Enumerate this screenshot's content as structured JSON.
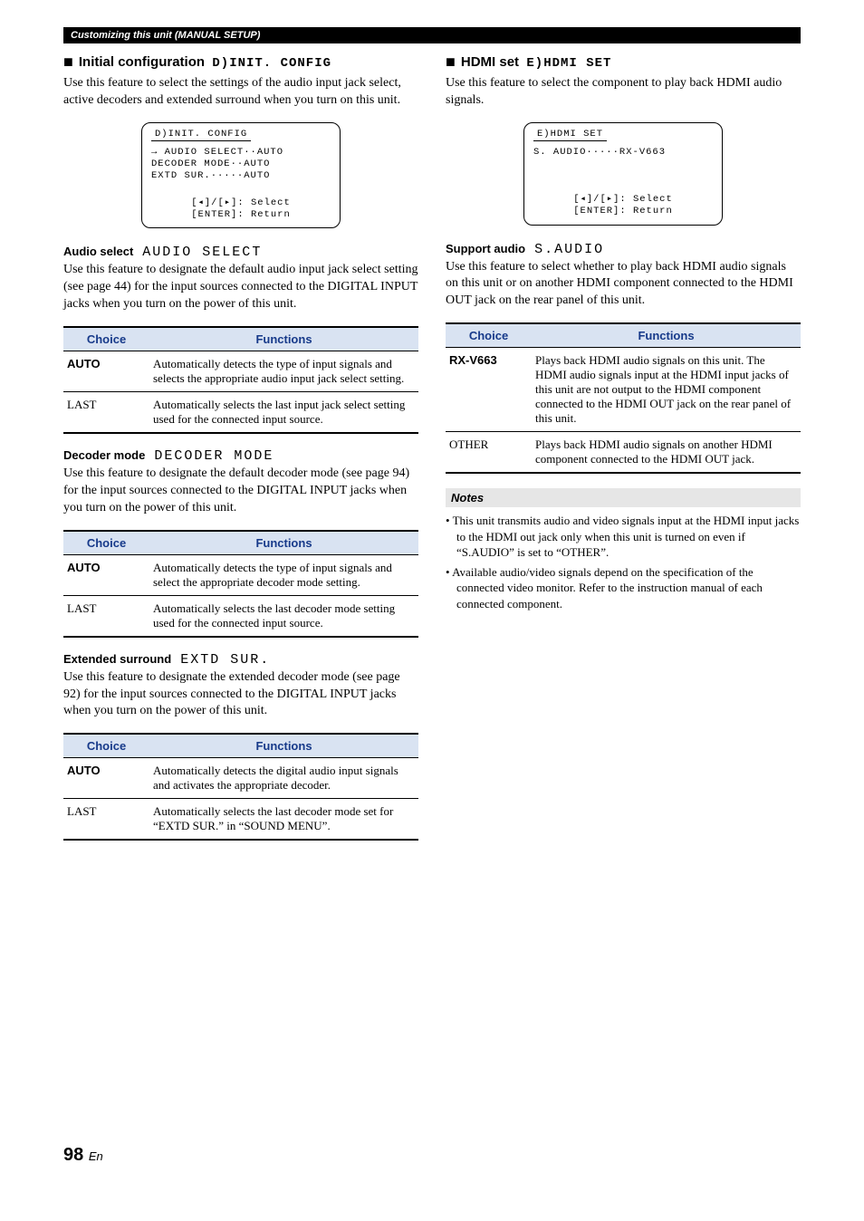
{
  "band": "Customizing this unit (MANUAL SETUP)",
  "left": {
    "init": {
      "heading": "Initial configuration",
      "lcd": "D)INIT. CONFIG",
      "body": "Use this feature to select the settings of the audio input jack select, active decoders and extended surround when you turn on this unit.",
      "screen": {
        "title": "D)INIT. CONFIG",
        "l1": "→ AUDIO SELECT··AUTO",
        "l2": "  DECODER MODE··AUTO",
        "l3": "  EXTD SUR.·····AUTO",
        "b1": "[◂]/[▸]: Select",
        "b2": "[ENTER]: Return"
      }
    },
    "audio": {
      "heading": "Audio select",
      "lcd": "AUDIO SELECT",
      "body": "Use this feature to designate the default audio input jack select setting (see page 44) for the input sources connected to the DIGITAL INPUT jacks when you turn on the power of this unit.",
      "th1": "Choice",
      "th2": "Functions",
      "r1c": "AUTO",
      "r1f": "Automatically detects the type of input signals and selects the appropriate audio input jack select setting.",
      "r2c": "LAST",
      "r2f": "Automatically selects the last input jack select setting used for the connected input source."
    },
    "decoder": {
      "heading": "Decoder mode",
      "lcd": "DECODER MODE",
      "body": "Use this feature to designate the default decoder mode (see page 94) for the input sources connected to the DIGITAL INPUT jacks when you turn on the power of this unit.",
      "th1": "Choice",
      "th2": "Functions",
      "r1c": "AUTO",
      "r1f": "Automatically detects the type of input signals and select the appropriate decoder mode setting.",
      "r2c": "LAST",
      "r2f": "Automatically selects the last decoder mode setting used for the connected input source."
    },
    "extd": {
      "heading": "Extended surround",
      "lcd": "EXTD SUR.",
      "body": "Use this feature to designate the extended decoder mode (see page 92) for the input sources connected to the DIGITAL INPUT jacks when you turn on the power of this unit.",
      "th1": "Choice",
      "th2": "Functions",
      "r1c": "AUTO",
      "r1f": "Automatically detects the digital audio input signals and activates the appropriate decoder.",
      "r2c": "LAST",
      "r2f": "Automatically selects the last decoder mode set for “EXTD SUR.” in “SOUND MENU”."
    }
  },
  "right": {
    "hdmi": {
      "heading": "HDMI set",
      "lcd": "E)HDMI SET",
      "body": "Use this feature to select the component to play back HDMI audio signals.",
      "screen": {
        "title": "E)HDMI SET",
        "l1": "  S. AUDIO·····RX-V663",
        "b1": "[◂]/[▸]: Select",
        "b2": "[ENTER]: Return"
      }
    },
    "support": {
      "heading": "Support audio",
      "lcd": "S.AUDIO",
      "body": "Use this feature to select whether to play back HDMI audio signals on this unit or on another HDMI component connected to the HDMI OUT jack on the rear panel of this unit.",
      "th1": "Choice",
      "th2": "Functions",
      "r1c": "RX-V663",
      "r1f": "Plays back HDMI audio signals on this unit. The HDMI audio signals input at the HDMI input jacks of this unit are not output to the HDMI component connected to the HDMI OUT jack on the rear panel of this unit.",
      "r2c": "OTHER",
      "r2f": "Plays back HDMI audio signals on another HDMI component connected to the HDMI OUT jack."
    },
    "notes": {
      "heading": "Notes",
      "n1": "This unit transmits audio and video signals input at the HDMI input jacks to the HDMI out jack only when this unit is turned on even if “S.AUDIO” is set to “OTHER”.",
      "n2": "Available audio/video signals depend on the specification of the connected video monitor. Refer to the instruction manual of each connected component."
    }
  },
  "page": {
    "num": "98",
    "suffix": "En"
  }
}
